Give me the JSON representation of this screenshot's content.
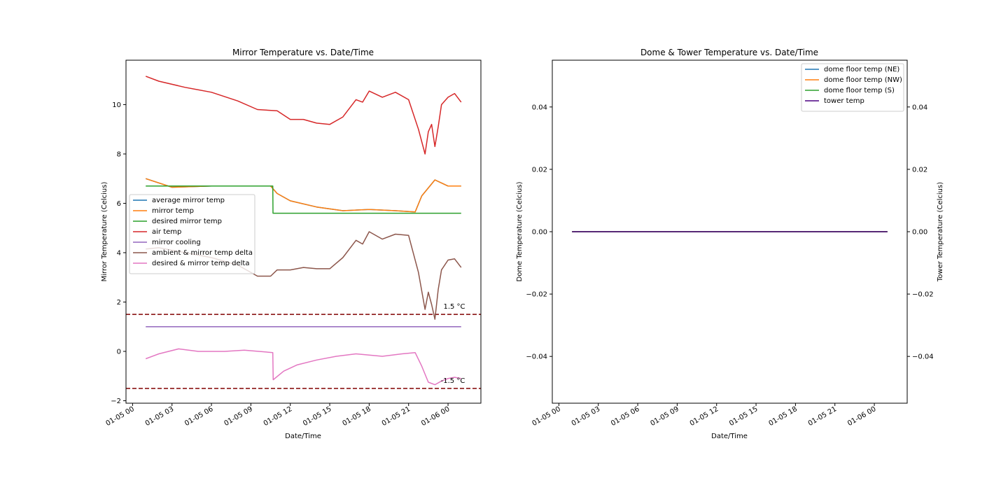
{
  "chart_data": [
    {
      "type": "line",
      "title": "Mirror Temperature vs. Date/Time",
      "xlabel": "Date/Time",
      "ylabel": "Mirror Temperature (Celcius)",
      "ylim": [
        -2.1,
        11.8
      ],
      "xlim": [
        "2023-01-04 23:30",
        "2023-01-06 02:30"
      ],
      "x_ticks": [
        "01-05 00",
        "01-05 03",
        "01-05 06",
        "01-05 09",
        "01-05 12",
        "01-05 15",
        "01-05 18",
        "01-05 21",
        "01-06 00"
      ],
      "y_ticks": [
        "−2",
        "0",
        "2",
        "4",
        "6",
        "8",
        "10"
      ],
      "grid": false,
      "legend_position": "center-left",
      "annotations": [
        {
          "text": "1.5 °C",
          "x": "2023-01-06 00:00",
          "y": 1.75
        },
        {
          "text": "-1.5 °C",
          "x": "2023-01-06 00:00",
          "y": -1.15
        }
      ],
      "hlines": [
        {
          "y": 1.5,
          "style": "dashed",
          "color": "#800000"
        },
        {
          "y": -1.5,
          "style": "dashed",
          "color": "#800000"
        }
      ],
      "series": [
        {
          "name": "average mirror temp",
          "color": "#1f77b4",
          "x": [
            "2023-01-05 01:00",
            "2023-01-05 03:00",
            "2023-01-05 06:00",
            "2023-01-05 09:00",
            "2023-01-05 10:30",
            "2023-01-05 11:00",
            "2023-01-05 12:00",
            "2023-01-05 14:00",
            "2023-01-05 16:00",
            "2023-01-05 18:00",
            "2023-01-05 20:00",
            "2023-01-05 21:30",
            "2023-01-05 22:00",
            "2023-01-05 23:00",
            "2023-01-06 00:00",
            "2023-01-06 01:00"
          ],
          "y": [
            7.0,
            6.65,
            6.7,
            6.7,
            6.7,
            6.4,
            6.1,
            5.85,
            5.7,
            5.75,
            5.7,
            5.65,
            6.3,
            6.95,
            6.7,
            6.7
          ]
        },
        {
          "name": "mirror temp",
          "color": "#ff7f0e",
          "x": [
            "2023-01-05 01:00",
            "2023-01-05 03:00",
            "2023-01-05 06:00",
            "2023-01-05 09:00",
            "2023-01-05 10:30",
            "2023-01-05 11:00",
            "2023-01-05 12:00",
            "2023-01-05 14:00",
            "2023-01-05 16:00",
            "2023-01-05 18:00",
            "2023-01-05 20:00",
            "2023-01-05 21:30",
            "2023-01-05 22:00",
            "2023-01-05 23:00",
            "2023-01-06 00:00",
            "2023-01-06 01:00"
          ],
          "y": [
            7.0,
            6.65,
            6.7,
            6.7,
            6.7,
            6.4,
            6.1,
            5.85,
            5.7,
            5.75,
            5.7,
            5.65,
            6.3,
            6.95,
            6.7,
            6.7
          ]
        },
        {
          "name": "desired mirror temp",
          "color": "#2ca02c",
          "x": [
            "2023-01-05 01:00",
            "2023-01-05 10:40",
            "2023-01-05 10:41",
            "2023-01-06 01:00"
          ],
          "y": [
            6.7,
            6.7,
            5.6,
            5.6
          ]
        },
        {
          "name": "air temp",
          "color": "#d62728",
          "x": [
            "2023-01-05 01:00",
            "2023-01-05 02:00",
            "2023-01-05 04:00",
            "2023-01-05 06:00",
            "2023-01-05 08:00",
            "2023-01-05 09:30",
            "2023-01-05 11:00",
            "2023-01-05 12:00",
            "2023-01-05 13:00",
            "2023-01-05 14:00",
            "2023-01-05 15:00",
            "2023-01-05 16:00",
            "2023-01-05 17:00",
            "2023-01-05 17:30",
            "2023-01-05 18:00",
            "2023-01-05 19:00",
            "2023-01-05 20:00",
            "2023-01-05 21:00",
            "2023-01-05 21:45",
            "2023-01-05 22:15",
            "2023-01-05 22:30",
            "2023-01-05 22:45",
            "2023-01-05 23:00",
            "2023-01-05 23:15",
            "2023-01-05 23:30",
            "2023-01-06 00:00",
            "2023-01-06 00:30",
            "2023-01-06 01:00"
          ],
          "y": [
            11.15,
            10.95,
            10.7,
            10.5,
            10.15,
            9.8,
            9.75,
            9.4,
            9.4,
            9.25,
            9.2,
            9.5,
            10.2,
            10.1,
            10.55,
            10.3,
            10.5,
            10.2,
            9.0,
            8.0,
            8.9,
            9.2,
            8.3,
            9.1,
            10.0,
            10.3,
            10.45,
            10.1
          ]
        },
        {
          "name": "mirror cooling",
          "color": "#9467bd",
          "x": [
            "2023-01-05 01:00",
            "2023-01-06 01:00"
          ],
          "y": [
            1.0,
            1.0
          ]
        },
        {
          "name": "ambient & mirror temp delta",
          "color": "#8c564b",
          "x": [
            "2023-01-05 01:00",
            "2023-01-05 02:00",
            "2023-01-05 04:00",
            "2023-01-05 06:00",
            "2023-01-05 08:00",
            "2023-01-05 09:30",
            "2023-01-05 10:30",
            "2023-01-05 11:00",
            "2023-01-05 12:00",
            "2023-01-05 13:00",
            "2023-01-05 14:00",
            "2023-01-05 15:00",
            "2023-01-05 16:00",
            "2023-01-05 17:00",
            "2023-01-05 17:30",
            "2023-01-05 18:00",
            "2023-01-05 19:00",
            "2023-01-05 20:00",
            "2023-01-05 21:00",
            "2023-01-05 21:45",
            "2023-01-05 22:15",
            "2023-01-05 22:30",
            "2023-01-05 22:45",
            "2023-01-05 23:00",
            "2023-01-05 23:15",
            "2023-01-05 23:30",
            "2023-01-06 00:00",
            "2023-01-06 00:30",
            "2023-01-06 01:00"
          ],
          "y": [
            4.15,
            4.2,
            4.0,
            3.8,
            3.5,
            3.05,
            3.05,
            3.3,
            3.3,
            3.4,
            3.35,
            3.35,
            3.8,
            4.5,
            4.35,
            4.85,
            4.55,
            4.75,
            4.7,
            3.2,
            1.7,
            2.4,
            1.9,
            1.3,
            2.5,
            3.3,
            3.7,
            3.75,
            3.4
          ]
        },
        {
          "name": "desired & mirror temp delta",
          "color": "#e377c2",
          "x": [
            "2023-01-05 01:00",
            "2023-01-05 02:00",
            "2023-01-05 03:30",
            "2023-01-05 05:00",
            "2023-01-05 07:00",
            "2023-01-05 08:30",
            "2023-01-05 10:40",
            "2023-01-05 10:42",
            "2023-01-05 11:30",
            "2023-01-05 12:30",
            "2023-01-05 14:00",
            "2023-01-05 15:30",
            "2023-01-05 17:00",
            "2023-01-05 19:00",
            "2023-01-05 20:30",
            "2023-01-05 21:30",
            "2023-01-05 22:00",
            "2023-01-05 22:30",
            "2023-01-05 23:00",
            "2023-01-05 23:30",
            "2023-01-06 00:00",
            "2023-01-06 00:30",
            "2023-01-06 01:00"
          ],
          "y": [
            -0.3,
            -0.1,
            0.1,
            0.0,
            0.0,
            0.05,
            -0.05,
            -1.15,
            -0.8,
            -0.55,
            -0.35,
            -0.2,
            -0.1,
            -0.2,
            -0.1,
            -0.05,
            -0.6,
            -1.25,
            -1.35,
            -1.2,
            -1.1,
            -1.05,
            -1.1
          ]
        }
      ]
    },
    {
      "type": "line",
      "title": "Dome & Tower Temperature vs. Date/Time",
      "xlabel": "Date/Time",
      "ylabel": "Dome Temperature (Celcius)",
      "ylabel_right": "Tower Temperature (Celcius)",
      "ylim": [
        -0.055,
        0.055
      ],
      "xlim": [
        "2023-01-04 23:30",
        "2023-01-06 02:30"
      ],
      "x_ticks": [
        "01-05 00",
        "01-05 03",
        "01-05 06",
        "01-05 09",
        "01-05 12",
        "01-05 15",
        "01-05 18",
        "01-05 21",
        "01-06 00"
      ],
      "y_ticks": [
        "−0.04",
        "−0.02",
        "0.00",
        "0.02",
        "0.04"
      ],
      "grid": false,
      "legend_position": "top-right",
      "series": [
        {
          "name": "dome floor temp (NE)",
          "color": "#1f77b4",
          "x": [
            "2023-01-05 01:00",
            "2023-01-06 01:00"
          ],
          "y": [
            0,
            0
          ]
        },
        {
          "name": "dome floor temp (NW)",
          "color": "#ff7f0e",
          "x": [
            "2023-01-05 01:00",
            "2023-01-06 01:00"
          ],
          "y": [
            0,
            0
          ]
        },
        {
          "name": "dome floor temp (S)",
          "color": "#2ca02c",
          "x": [
            "2023-01-05 01:00",
            "2023-01-06 01:00"
          ],
          "y": [
            0,
            0
          ]
        },
        {
          "name": "tower temp",
          "color": "#4b0082",
          "x": [
            "2023-01-05 01:00",
            "2023-01-06 01:00"
          ],
          "y": [
            0,
            0
          ]
        }
      ]
    }
  ]
}
